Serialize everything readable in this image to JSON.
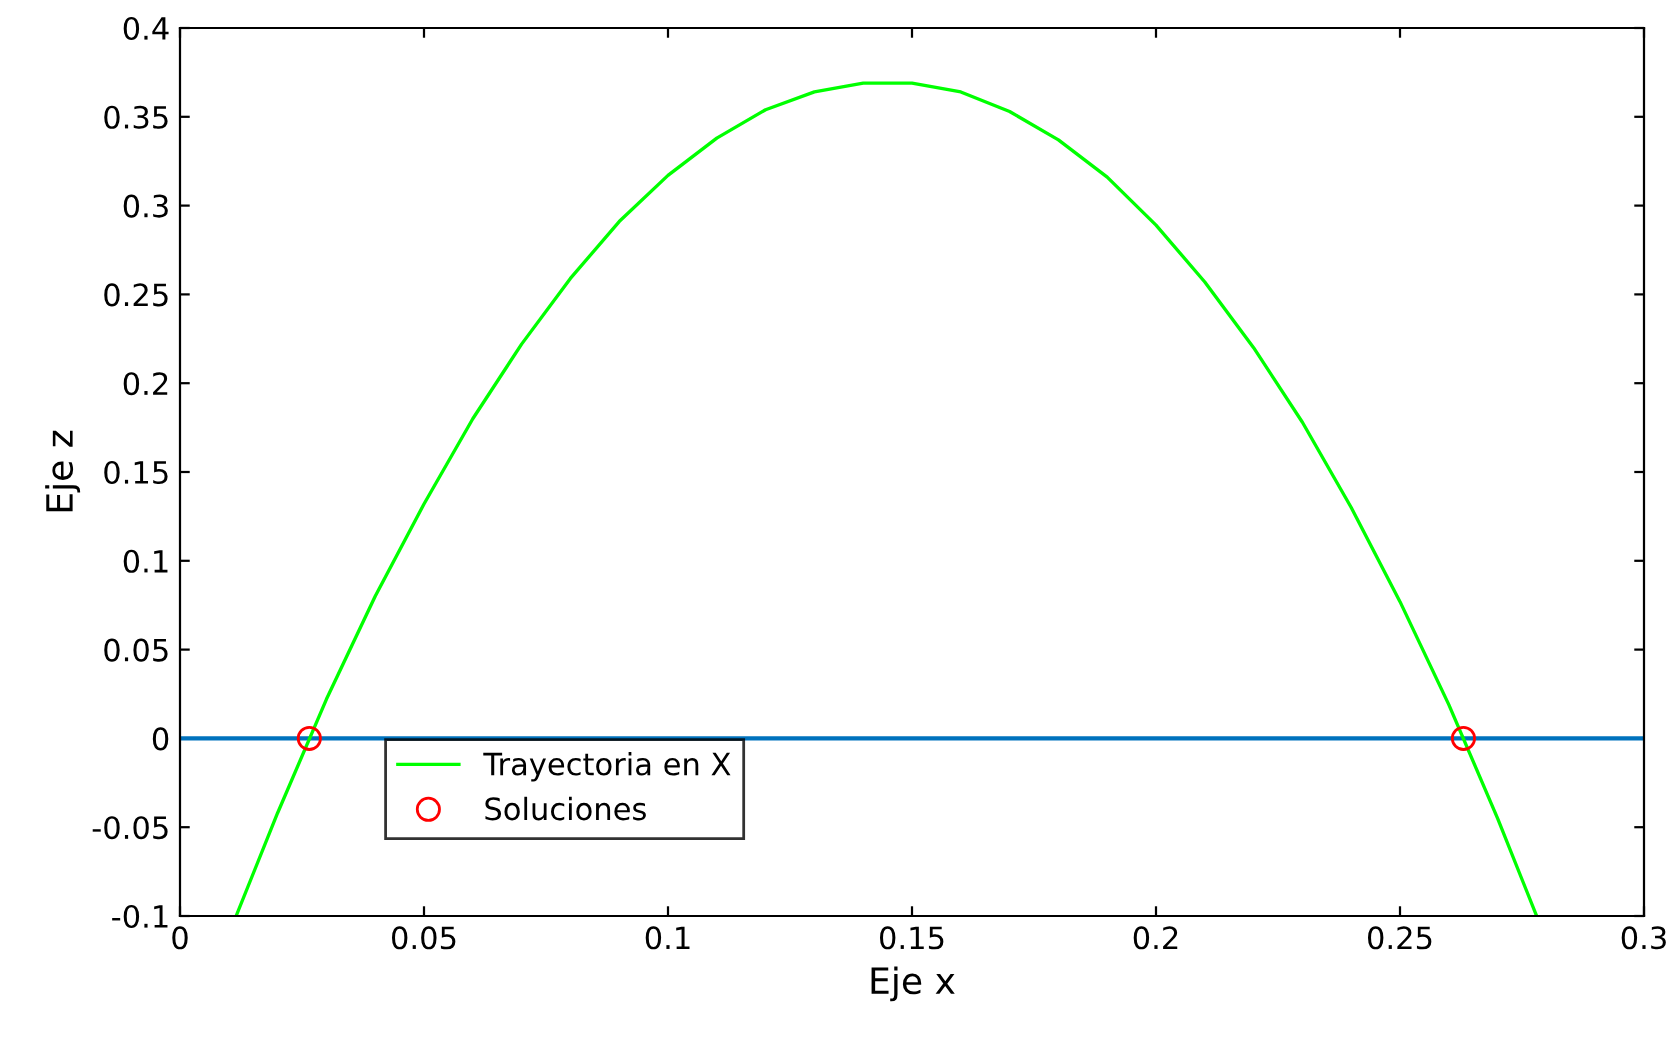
{
  "chart_data": {
    "type": "line",
    "xlabel": "Eje x",
    "ylabel": "Eje z",
    "xlim": [
      0,
      0.3
    ],
    "xticks": [
      0,
      0.05,
      0.1,
      0.15,
      0.2,
      0.25,
      0.3
    ],
    "ylim": [
      -0.1,
      0.4
    ],
    "yticks": [
      -0.1,
      -0.05,
      0,
      0.05,
      0.1,
      0.15,
      0.2,
      0.25,
      0.3,
      0.35,
      0.4
    ],
    "grid": false,
    "legend": "bottom left",
    "ref_lines": [
      {
        "axis": "y",
        "value": 0,
        "color": "#0072bd"
      }
    ],
    "series": [
      {
        "name": "Trayectoria en X",
        "color": "#00ff00",
        "marker": "none",
        "line_style": "solid",
        "x": [
          0.0115,
          0.02,
          0.03,
          0.04,
          0.05,
          0.06,
          0.07,
          0.08,
          0.09,
          0.1,
          0.11,
          0.12,
          0.13,
          0.14,
          0.15,
          0.16,
          0.17,
          0.18,
          0.19,
          0.2,
          0.21,
          0.22,
          0.23,
          0.24,
          0.25,
          0.26,
          0.27,
          0.278
        ],
        "values": [
          -0.1,
          -0.042,
          0.022,
          0.08,
          0.132,
          0.18,
          0.222,
          0.259,
          0.291,
          0.317,
          0.338,
          0.354,
          0.364,
          0.369,
          0.369,
          0.364,
          0.353,
          0.337,
          0.316,
          0.289,
          0.257,
          0.22,
          0.178,
          0.13,
          0.077,
          0.019,
          -0.045,
          -0.1
        ]
      },
      {
        "name": "Soluciones",
        "type": "scatter",
        "color": "#ff0000",
        "marker": "circle",
        "x": [
          0.0265,
          0.263
        ],
        "values": [
          0,
          0
        ]
      }
    ]
  }
}
